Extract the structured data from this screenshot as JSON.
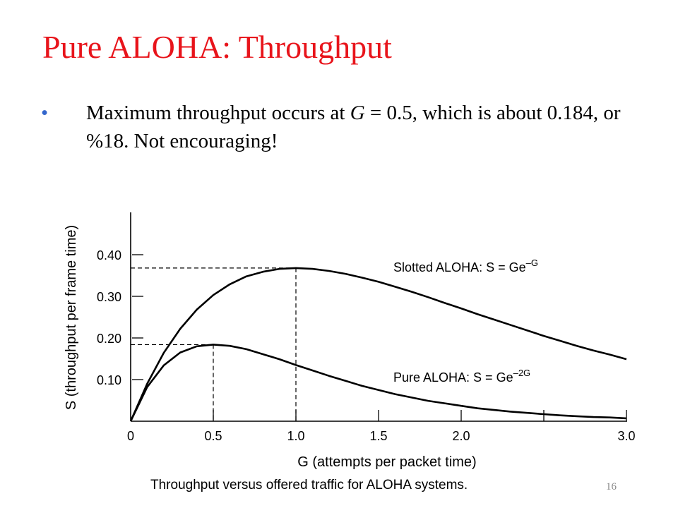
{
  "slide": {
    "title": "Pure ALOHA: Throughput",
    "bullet_marker": "•",
    "bullet_before_g": "Maximum throughput occurs at ",
    "bullet_g": "G",
    "bullet_after_g": " = 0.5, which is about 0.184, or %18. Not encouraging!",
    "caption": "Throughput versus offered traffic for ALOHA systems.",
    "page_number": "16"
  },
  "chart_data": {
    "type": "line",
    "xlabel": "G (attempts per packet time)",
    "ylabel": "S (throughput per frame time)",
    "xlim": [
      0,
      3.0
    ],
    "ylim": [
      0,
      0.5
    ],
    "x_ticks": [
      "0",
      "0.5",
      "1.0",
      "1.5",
      "2.0",
      "3.0"
    ],
    "y_ticks": [
      "0.10",
      "0.20",
      "0.30",
      "0.40"
    ],
    "series": [
      {
        "name": "Slotted ALOHA: S = Ge",
        "exponent": "–G",
        "x": [
          0,
          0.1,
          0.2,
          0.3,
          0.4,
          0.5,
          0.6,
          0.7,
          0.8,
          0.9,
          1.0,
          1.1,
          1.2,
          1.3,
          1.4,
          1.5,
          1.6,
          1.7,
          1.8,
          1.9,
          2.0,
          2.1,
          2.2,
          2.3,
          2.4,
          2.5,
          2.6,
          2.7,
          2.8,
          2.9,
          3.0
        ],
        "y": [
          0,
          0.09,
          0.164,
          0.222,
          0.268,
          0.303,
          0.329,
          0.348,
          0.359,
          0.366,
          0.368,
          0.366,
          0.361,
          0.354,
          0.345,
          0.335,
          0.323,
          0.311,
          0.298,
          0.284,
          0.271,
          0.257,
          0.244,
          0.231,
          0.218,
          0.205,
          0.193,
          0.181,
          0.17,
          0.16,
          0.149
        ]
      },
      {
        "name": "Pure ALOHA: S = Ge",
        "exponent": "–2G",
        "x": [
          0,
          0.1,
          0.2,
          0.3,
          0.4,
          0.5,
          0.6,
          0.7,
          0.8,
          0.9,
          1.0,
          1.1,
          1.2,
          1.3,
          1.4,
          1.5,
          1.6,
          1.7,
          1.8,
          1.9,
          2.0,
          2.1,
          2.2,
          2.3,
          2.4,
          2.5,
          2.6,
          2.7,
          2.8,
          2.9,
          3.0
        ],
        "y": [
          0,
          0.082,
          0.134,
          0.165,
          0.18,
          0.184,
          0.181,
          0.173,
          0.161,
          0.149,
          0.135,
          0.122,
          0.109,
          0.097,
          0.085,
          0.075,
          0.065,
          0.057,
          0.049,
          0.043,
          0.037,
          0.031,
          0.027,
          0.023,
          0.02,
          0.017,
          0.014,
          0.012,
          0.01,
          0.009,
          0.007
        ]
      }
    ],
    "reference_lines": [
      {
        "x": 1.0,
        "y": 0.368
      },
      {
        "x": 0.5,
        "y": 0.184
      }
    ],
    "grid": false
  }
}
